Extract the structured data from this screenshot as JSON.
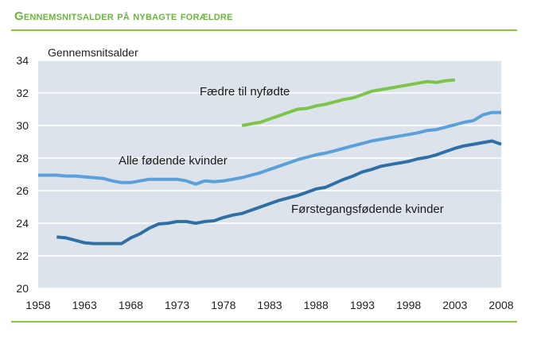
{
  "title": "Gennemsnitsalder på nybagte forældre",
  "chart_data": {
    "type": "line",
    "ylabel": "Gennemsnitsalder",
    "xlim": [
      1958,
      2008
    ],
    "ylim": [
      20,
      34
    ],
    "x_ticks": [
      "1958",
      "1963",
      "1968",
      "1973",
      "1978",
      "1983",
      "1988",
      "1993",
      "1998",
      "2003",
      "2008"
    ],
    "y_ticks": [
      "20",
      "22",
      "24",
      "26",
      "28",
      "30",
      "32",
      "34"
    ],
    "grid": true,
    "series": [
      {
        "name": "Fædre til nyfødte",
        "color": "#7cc54a",
        "x": [
          1980,
          1981,
          1982,
          1983,
          1984,
          1985,
          1986,
          1987,
          1988,
          1989,
          1990,
          1991,
          1992,
          1993,
          1994,
          1995,
          1996,
          1997,
          1998,
          1999,
          2000,
          2001,
          2002,
          2003
        ],
        "values": [
          30.0,
          30.1,
          30.2,
          30.4,
          30.6,
          30.8,
          31.0,
          31.05,
          31.2,
          31.3,
          31.45,
          31.6,
          31.7,
          31.9,
          32.1,
          32.2,
          32.3,
          32.4,
          32.5,
          32.6,
          32.7,
          32.65,
          32.75,
          32.8
        ]
      },
      {
        "name": "Alle fødende kvinder",
        "color": "#5aa0dc",
        "x": [
          1958,
          1959,
          1960,
          1961,
          1962,
          1963,
          1964,
          1965,
          1966,
          1967,
          1968,
          1969,
          1970,
          1971,
          1972,
          1973,
          1974,
          1975,
          1976,
          1977,
          1978,
          1979,
          1980,
          1981,
          1982,
          1983,
          1984,
          1985,
          1986,
          1987,
          1988,
          1989,
          1990,
          1991,
          1992,
          1993,
          1994,
          1995,
          1996,
          1997,
          1998,
          1999,
          2000,
          2001,
          2002,
          2003,
          2004,
          2005,
          2006,
          2007,
          2008
        ],
        "values": [
          26.95,
          26.95,
          26.95,
          26.9,
          26.9,
          26.85,
          26.8,
          26.75,
          26.6,
          26.5,
          26.5,
          26.6,
          26.7,
          26.7,
          26.7,
          26.7,
          26.6,
          26.4,
          26.6,
          26.55,
          26.6,
          26.7,
          26.8,
          26.95,
          27.1,
          27.3,
          27.5,
          27.7,
          27.9,
          28.05,
          28.2,
          28.3,
          28.45,
          28.6,
          28.75,
          28.9,
          29.05,
          29.15,
          29.25,
          29.35,
          29.45,
          29.55,
          29.7,
          29.75,
          29.9,
          30.05,
          30.2,
          30.3,
          30.65,
          30.8,
          30.8
        ]
      },
      {
        "name": "Førstegangsfødende kvinder",
        "color": "#2f6fa8",
        "x": [
          1960,
          1961,
          1962,
          1963,
          1964,
          1965,
          1966,
          1967,
          1968,
          1969,
          1970,
          1971,
          1972,
          1973,
          1974,
          1975,
          1976,
          1977,
          1978,
          1979,
          1980,
          1981,
          1982,
          1983,
          1984,
          1985,
          1986,
          1987,
          1988,
          1989,
          1990,
          1991,
          1992,
          1993,
          1994,
          1995,
          1996,
          1997,
          1998,
          1999,
          2000,
          2001,
          2002,
          2003,
          2004,
          2005,
          2006,
          2007,
          2008
        ],
        "values": [
          23.15,
          23.1,
          22.95,
          22.8,
          22.75,
          22.75,
          22.75,
          22.75,
          23.1,
          23.35,
          23.7,
          23.95,
          24.0,
          24.1,
          24.1,
          24.0,
          24.1,
          24.15,
          24.35,
          24.5,
          24.6,
          24.8,
          25.0,
          25.2,
          25.4,
          25.55,
          25.7,
          25.9,
          26.1,
          26.2,
          26.45,
          26.7,
          26.9,
          27.15,
          27.3,
          27.5,
          27.6,
          27.7,
          27.8,
          27.95,
          28.05,
          28.2,
          28.4,
          28.6,
          28.75,
          28.85,
          28.95,
          29.05,
          28.85
        ]
      }
    ]
  }
}
